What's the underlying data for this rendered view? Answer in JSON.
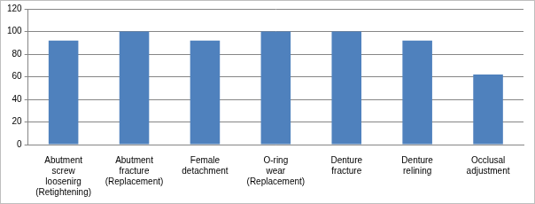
{
  "chart_data": {
    "type": "bar",
    "categories": [
      "Abutment screw loosenirg (Retightening)",
      "Abutment fracture (Replacement)",
      "Female detachment",
      "O-ring wear (Replacement)",
      "Denture fracture",
      "Denture relining",
      "Occlusal adjustment"
    ],
    "values": [
      92,
      100,
      92,
      100,
      100,
      92,
      62
    ],
    "color": "#4f81bd",
    "ylim": [
      0,
      120
    ],
    "yticks": [
      0,
      20,
      40,
      60,
      80,
      100,
      120
    ],
    "grid": true
  }
}
